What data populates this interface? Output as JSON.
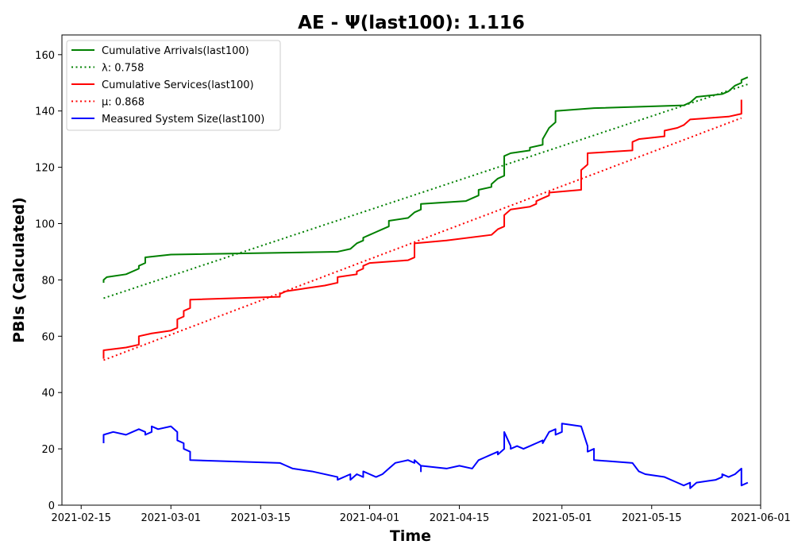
{
  "chart_data": {
    "type": "line",
    "title": "AE -  Ψ(last100): 1.116",
    "xlabel": "Time",
    "ylabel": "PBIs (Calculated)",
    "xlim": [
      "2021-02-12",
      "2021-06-01"
    ],
    "ylim": [
      0,
      167
    ],
    "x_ticks": [
      "2021-02-15",
      "2021-03-01",
      "2021-03-15",
      "2021-04-01",
      "2021-04-15",
      "2021-05-01",
      "2021-05-15",
      "2021-06-01"
    ],
    "y_ticks": [
      0,
      20,
      40,
      60,
      80,
      100,
      120,
      140,
      160
    ],
    "grid": false,
    "legend_position": "top-left",
    "series": [
      {
        "name": "Cumulative Arrivals(last100)",
        "color": "#008000",
        "style": "solid",
        "points": [
          [
            "2021-02-18T12:00",
            79
          ],
          [
            "2021-02-18T12:00",
            80
          ],
          [
            "2021-02-19",
            81
          ],
          [
            "2021-02-22",
            82
          ],
          [
            "2021-02-24",
            84
          ],
          [
            "2021-02-24",
            85
          ],
          [
            "2021-02-25",
            86
          ],
          [
            "2021-02-25",
            88
          ],
          [
            "2021-03-01",
            89
          ],
          [
            "2021-03-27",
            90
          ],
          [
            "2021-03-29",
            91
          ],
          [
            "2021-03-30",
            93
          ],
          [
            "2021-03-31",
            94
          ],
          [
            "2021-03-31",
            95
          ],
          [
            "2021-04-01",
            96
          ],
          [
            "2021-04-02",
            97
          ],
          [
            "2021-04-03",
            98
          ],
          [
            "2021-04-04",
            99
          ],
          [
            "2021-04-04",
            101
          ],
          [
            "2021-04-07",
            102
          ],
          [
            "2021-04-08",
            104
          ],
          [
            "2021-04-09",
            105
          ],
          [
            "2021-04-09",
            107
          ],
          [
            "2021-04-16",
            108
          ],
          [
            "2021-04-17",
            109
          ],
          [
            "2021-04-18",
            110
          ],
          [
            "2021-04-18",
            112
          ],
          [
            "2021-04-20",
            113
          ],
          [
            "2021-04-20",
            114
          ],
          [
            "2021-04-21",
            116
          ],
          [
            "2021-04-22",
            117
          ],
          [
            "2021-04-22",
            124
          ],
          [
            "2021-04-23",
            125
          ],
          [
            "2021-04-26",
            126
          ],
          [
            "2021-04-26",
            127
          ],
          [
            "2021-04-28",
            128
          ],
          [
            "2021-04-28",
            130
          ],
          [
            "2021-04-29",
            134
          ],
          [
            "2021-04-30",
            136
          ],
          [
            "2021-04-30",
            140
          ],
          [
            "2021-05-06",
            141
          ],
          [
            "2021-05-20",
            142
          ],
          [
            "2021-05-21",
            143
          ],
          [
            "2021-05-22",
            145
          ],
          [
            "2021-05-26",
            146
          ],
          [
            "2021-05-27",
            147
          ],
          [
            "2021-05-28",
            149
          ],
          [
            "2021-05-29",
            150
          ],
          [
            "2021-05-29",
            151
          ],
          [
            "2021-05-30",
            152
          ]
        ]
      },
      {
        "name": "λ: 0.758",
        "color": "#008000",
        "style": "dotted",
        "points": [
          [
            "2021-02-18T12:00",
            73.5
          ],
          [
            "2021-05-30",
            149.5
          ]
        ]
      },
      {
        "name": "Cumulative Services(last100)",
        "color": "#ff0000",
        "style": "solid",
        "points": [
          [
            "2021-02-18T12:00",
            52
          ],
          [
            "2021-02-18T12:00",
            55
          ],
          [
            "2021-02-22",
            56
          ],
          [
            "2021-02-24",
            57
          ],
          [
            "2021-02-24",
            60
          ],
          [
            "2021-02-26",
            61
          ],
          [
            "2021-03-01",
            62
          ],
          [
            "2021-03-02",
            63
          ],
          [
            "2021-03-02",
            66
          ],
          [
            "2021-03-03",
            67
          ],
          [
            "2021-03-03",
            69
          ],
          [
            "2021-03-04",
            70
          ],
          [
            "2021-03-04",
            73
          ],
          [
            "2021-03-18",
            74
          ],
          [
            "2021-03-18",
            75
          ],
          [
            "2021-03-19",
            76
          ],
          [
            "2021-03-22",
            77
          ],
          [
            "2021-03-25",
            78
          ],
          [
            "2021-03-27",
            79
          ],
          [
            "2021-03-27",
            81
          ],
          [
            "2021-03-30",
            82
          ],
          [
            "2021-03-30",
            83
          ],
          [
            "2021-03-31",
            84
          ],
          [
            "2021-03-31",
            85
          ],
          [
            "2021-04-01",
            86
          ],
          [
            "2021-04-07",
            87
          ],
          [
            "2021-04-08",
            88
          ],
          [
            "2021-04-08",
            89
          ],
          [
            "2021-04-08",
            93
          ],
          [
            "2021-04-13",
            94
          ],
          [
            "2021-04-20",
            96
          ],
          [
            "2021-04-21",
            98
          ],
          [
            "2021-04-22",
            99
          ],
          [
            "2021-04-22",
            103
          ],
          [
            "2021-04-23",
            105
          ],
          [
            "2021-04-26",
            106
          ],
          [
            "2021-04-27",
            107
          ],
          [
            "2021-04-27",
            108
          ],
          [
            "2021-04-28",
            109
          ],
          [
            "2021-04-29",
            110
          ],
          [
            "2021-04-29",
            111
          ],
          [
            "2021-05-04",
            112
          ],
          [
            "2021-05-04",
            119
          ],
          [
            "2021-05-05",
            121
          ],
          [
            "2021-05-05",
            125
          ],
          [
            "2021-05-12",
            126
          ],
          [
            "2021-05-12",
            129
          ],
          [
            "2021-05-13",
            130
          ],
          [
            "2021-05-17",
            131
          ],
          [
            "2021-05-17",
            133
          ],
          [
            "2021-05-19",
            134
          ],
          [
            "2021-05-20",
            135
          ],
          [
            "2021-05-21",
            137
          ],
          [
            "2021-05-27",
            138
          ],
          [
            "2021-05-29",
            139
          ],
          [
            "2021-05-29",
            144
          ]
        ]
      },
      {
        "name": "μ: 0.868",
        "color": "#ff0000",
        "style": "dotted",
        "points": [
          [
            "2021-02-18T12:00",
            51.5
          ],
          [
            "2021-05-29",
            137.5
          ]
        ]
      },
      {
        "name": "Measured System Size(last100)",
        "color": "#0000ff",
        "style": "solid",
        "points": [
          [
            "2021-02-18T12:00",
            22
          ],
          [
            "2021-02-18T12:00",
            25
          ],
          [
            "2021-02-20",
            26
          ],
          [
            "2021-02-22",
            25
          ],
          [
            "2021-02-23",
            26
          ],
          [
            "2021-02-24",
            27
          ],
          [
            "2021-02-25",
            26
          ],
          [
            "2021-02-25",
            25
          ],
          [
            "2021-02-26",
            26
          ],
          [
            "2021-02-26",
            28
          ],
          [
            "2021-02-27",
            27
          ],
          [
            "2021-03-01",
            28
          ],
          [
            "2021-03-02",
            26
          ],
          [
            "2021-03-02",
            23
          ],
          [
            "2021-03-03",
            22
          ],
          [
            "2021-03-03",
            20
          ],
          [
            "2021-03-04",
            19
          ],
          [
            "2021-03-04",
            16
          ],
          [
            "2021-03-18",
            15
          ],
          [
            "2021-03-19",
            14
          ],
          [
            "2021-03-20",
            13
          ],
          [
            "2021-03-23",
            12
          ],
          [
            "2021-03-27",
            10
          ],
          [
            "2021-03-27",
            9
          ],
          [
            "2021-03-29",
            11
          ],
          [
            "2021-03-29",
            9
          ],
          [
            "2021-03-30",
            11
          ],
          [
            "2021-03-31",
            10
          ],
          [
            "2021-03-31",
            12
          ],
          [
            "2021-04-01",
            11
          ],
          [
            "2021-04-02",
            10
          ],
          [
            "2021-04-03",
            11
          ],
          [
            "2021-04-04",
            13
          ],
          [
            "2021-04-05",
            15
          ],
          [
            "2021-04-07",
            16
          ],
          [
            "2021-04-08",
            15
          ],
          [
            "2021-04-08",
            16
          ],
          [
            "2021-04-09",
            14
          ],
          [
            "2021-04-09",
            12
          ],
          [
            "2021-04-09",
            14
          ],
          [
            "2021-04-13",
            13
          ],
          [
            "2021-04-15",
            14
          ],
          [
            "2021-04-17",
            13
          ],
          [
            "2021-04-18",
            16
          ],
          [
            "2021-04-19",
            17
          ],
          [
            "2021-04-20",
            18
          ],
          [
            "2021-04-21",
            19
          ],
          [
            "2021-04-21",
            18
          ],
          [
            "2021-04-22",
            20
          ],
          [
            "2021-04-22",
            26
          ],
          [
            "2021-04-23",
            21
          ],
          [
            "2021-04-23",
            20
          ],
          [
            "2021-04-24",
            21
          ],
          [
            "2021-04-25",
            20
          ],
          [
            "2021-04-26",
            21
          ],
          [
            "2021-04-27",
            22
          ],
          [
            "2021-04-28",
            23
          ],
          [
            "2021-04-28",
            22
          ],
          [
            "2021-04-29",
            26
          ],
          [
            "2021-04-30",
            27
          ],
          [
            "2021-04-30",
            25
          ],
          [
            "2021-05-01",
            26
          ],
          [
            "2021-05-01",
            29
          ],
          [
            "2021-05-04",
            28
          ],
          [
            "2021-05-05",
            21
          ],
          [
            "2021-05-05",
            19
          ],
          [
            "2021-05-06",
            20
          ],
          [
            "2021-05-06",
            16
          ],
          [
            "2021-05-12",
            15
          ],
          [
            "2021-05-13",
            12
          ],
          [
            "2021-05-14",
            11
          ],
          [
            "2021-05-17",
            10
          ],
          [
            "2021-05-19",
            8
          ],
          [
            "2021-05-20",
            7
          ],
          [
            "2021-05-21",
            8
          ],
          [
            "2021-05-21",
            6
          ],
          [
            "2021-05-22",
            8
          ],
          [
            "2021-05-25",
            9
          ],
          [
            "2021-05-26",
            10
          ],
          [
            "2021-05-26",
            11
          ],
          [
            "2021-05-27",
            10
          ],
          [
            "2021-05-28",
            11
          ],
          [
            "2021-05-29",
            13
          ],
          [
            "2021-05-29",
            7
          ],
          [
            "2021-05-30",
            8
          ]
        ]
      }
    ]
  }
}
